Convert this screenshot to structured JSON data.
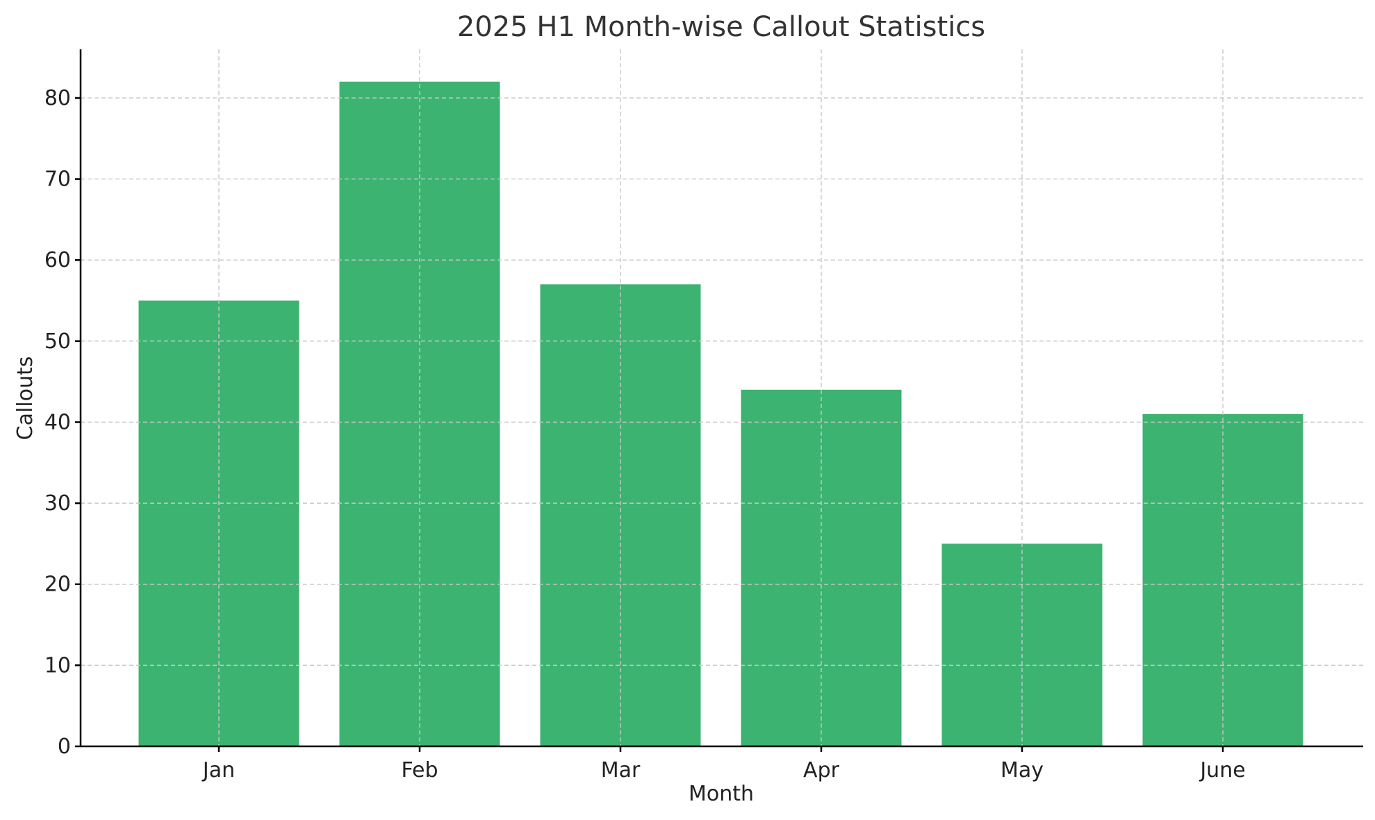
{
  "chart_data": {
    "type": "bar",
    "title": "2025 H1 Month-wise Callout Statistics",
    "xlabel": "Month",
    "ylabel": "Callouts",
    "categories": [
      "Jan",
      "Feb",
      "Mar",
      "Apr",
      "May",
      "June"
    ],
    "values": [
      55,
      82,
      57,
      44,
      25,
      41
    ],
    "ylim": [
      0,
      86
    ],
    "yticks": [
      0,
      10,
      20,
      30,
      40,
      50,
      60,
      70,
      80
    ],
    "grid": true,
    "colors": {
      "bar": "#3cb371",
      "grid": "#c8c8c8",
      "axis": "#000000",
      "text": "#222222"
    }
  }
}
